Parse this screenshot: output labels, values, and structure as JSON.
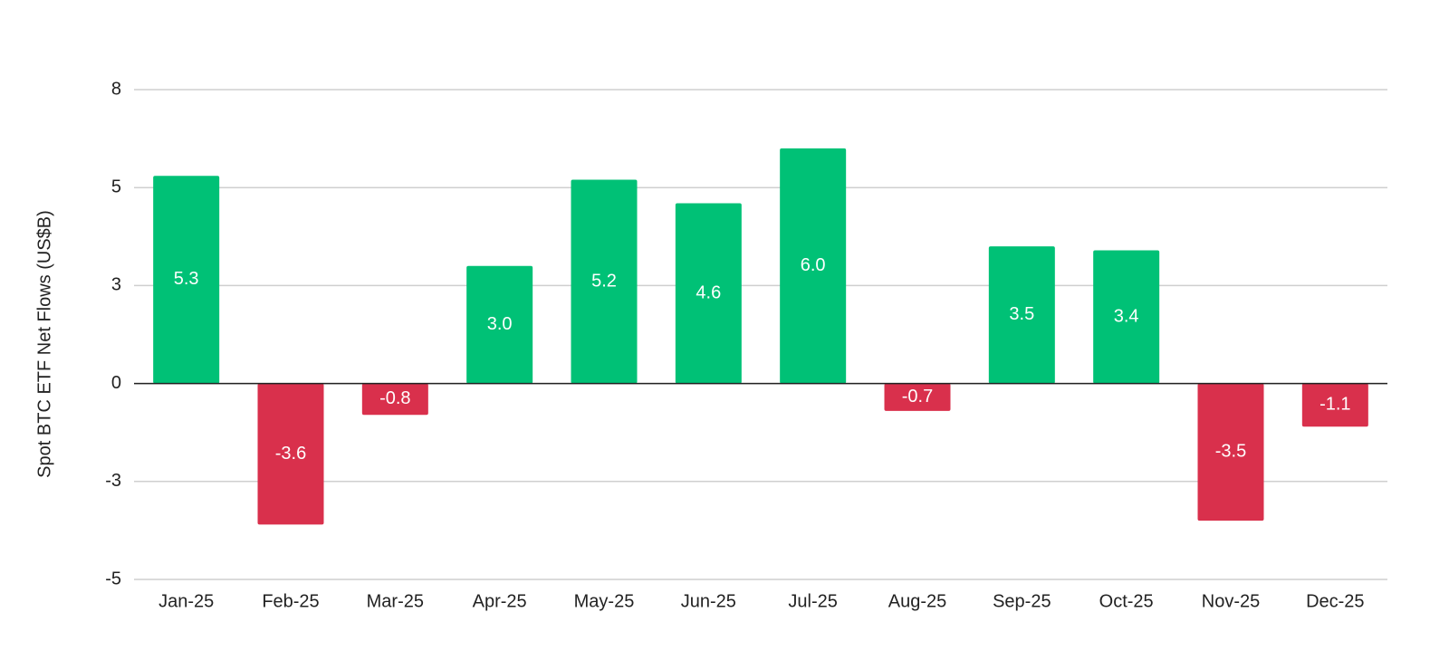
{
  "chart_data": {
    "type": "bar",
    "y_axis_label": "Spot BTC ETF Net Flows (US$B)",
    "categories": [
      "Jan-25",
      "Feb-25",
      "Mar-25",
      "Apr-25",
      "May-25",
      "Jun-25",
      "Jul-25",
      "Aug-25",
      "Sep-25",
      "Oct-25",
      "Nov-25",
      "Dec-25"
    ],
    "values": [
      5.3,
      -3.6,
      -0.8,
      3.0,
      5.2,
      4.6,
      6.0,
      -0.7,
      3.5,
      3.4,
      -3.5,
      -1.1
    ],
    "value_labels": [
      "5.3",
      "-3.6",
      "-0.8",
      "3.0",
      "5.2",
      "4.6",
      "6.0",
      "-0.7",
      "3.5",
      "3.4",
      "-3.5",
      "-1.1"
    ],
    "positive_color": "#00c176",
    "negative_color": "#d9304c",
    "ylim": [
      -5,
      7.5
    ],
    "yticks": [
      {
        "value": 7.5,
        "label": "8"
      },
      5,
      {
        "value": 2.5,
        "label": "3"
      },
      0,
      {
        "value": -2.5,
        "label": "-3"
      },
      -5
    ],
    "grid": true
  }
}
